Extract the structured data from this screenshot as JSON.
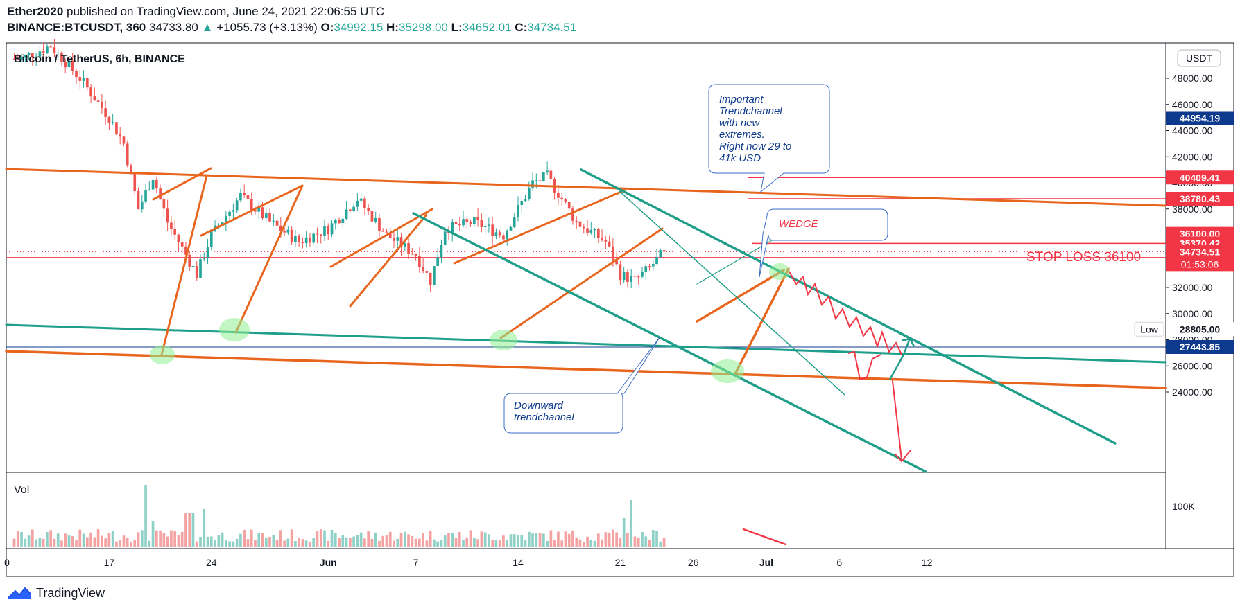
{
  "header": {
    "author": "Ether2020",
    "published_text": "published on TradingView.com, June 24, 2021 22:06:55 UTC",
    "symbol_line": "BINANCE:BTCUSDT, 360",
    "last": "34733.80",
    "up_arrow": "▲",
    "change": "+1055.73 (+3.13%)",
    "o_label": "O:",
    "o_val": "34992.15",
    "h_label": "H:",
    "h_val": "35298.00",
    "l_label": "L:",
    "l_val": "34652.01",
    "c_label": "C:",
    "c_val": "34734.51"
  },
  "pane_title": "Bitcoin / TetherUS, 6h, BINANCE",
  "currency_button": "USDT",
  "vol_label": "Vol",
  "vol_axis_label": "100K",
  "footer": {
    "brand": "TradingView",
    "logo_icon": "tradingview-logo-icon"
  },
  "colors": {
    "up": "#26a69a",
    "down": "#ef5350",
    "orange": "#e8651e",
    "teal": "#1f9e89",
    "red": "#f23645",
    "navy": "#0d3a8c",
    "highlight": "#90ee90"
  },
  "chart_data": {
    "type": "candlestick",
    "yaxis": {
      "ticks": [
        24000,
        26000,
        28000,
        30000,
        32000,
        34000,
        36000,
        38000,
        40000,
        42000,
        44000,
        46000,
        48000
      ],
      "range": [
        22300,
        51200
      ]
    },
    "xaxis": {
      "labels": [
        {
          "text": "0",
          "date": "2021-05-10"
        },
        {
          "text": "17",
          "date": "2021-05-17"
        },
        {
          "text": "24",
          "date": "2021-05-24"
        },
        {
          "text": "Jun",
          "date": "2021-06-01"
        },
        {
          "text": "7",
          "date": "2021-06-07"
        },
        {
          "text": "14",
          "date": "2021-06-14"
        },
        {
          "text": "21",
          "date": "2021-06-21"
        },
        {
          "text": "26",
          "date": "2021-06-26"
        },
        {
          "text": "Jul",
          "date": "2021-07-01"
        },
        {
          "text": "6",
          "date": "2021-07-06"
        },
        {
          "text": "12",
          "date": "2021-07-12"
        }
      ]
    },
    "price_labels": [
      {
        "value": 44954.19,
        "text": "44954.19",
        "color": "#0d3a8c"
      },
      {
        "value": 40409.41,
        "text": "40409.41",
        "color": "#f23645"
      },
      {
        "value": 38780.43,
        "text": "38780.43",
        "color": "#f23645"
      },
      {
        "value": 36100.0,
        "text": "36100.00",
        "color": "#f23645"
      },
      {
        "value": 35370.42,
        "text": "35370.42",
        "color": "#f23645"
      },
      {
        "value": 34734.51,
        "text": "34734.51",
        "color": "#f23645",
        "sub": "01:53:06"
      },
      {
        "value": 28805.0,
        "text": "28805.00",
        "color": "#ffffff",
        "tag": "Low"
      },
      {
        "value": 27443.85,
        "text": "27443.85",
        "color": "#0d3a8c"
      }
    ],
    "annotations": {
      "trendchannel_note": "Important\nTrendchannel\nwith new\nextremes.\nRight now 29 to\n41k USD",
      "wedge": "WEDGE",
      "stop_loss": "STOP LOSS 36100",
      "downward": "Downward\ntrendchannel"
    },
    "ohlc_key_points": [
      {
        "date": "2021-05-11",
        "close": 49500
      },
      {
        "date": "2021-05-13",
        "close": 50500
      },
      {
        "date": "2021-05-15",
        "close": 48000
      },
      {
        "date": "2021-05-17",
        "close": 45000
      },
      {
        "date": "2021-05-18",
        "close": 43000
      },
      {
        "date": "2021-05-19",
        "close": 38000
      },
      {
        "date": "2021-05-20",
        "close": 40500
      },
      {
        "date": "2021-05-21",
        "close": 37000
      },
      {
        "date": "2021-05-23",
        "close": 33000
      },
      {
        "date": "2021-05-24",
        "close": 36000
      },
      {
        "date": "2021-05-26",
        "close": 39000
      },
      {
        "date": "2021-05-28",
        "close": 37000
      },
      {
        "date": "2021-05-30",
        "close": 35500
      },
      {
        "date": "2021-06-01",
        "close": 36500
      },
      {
        "date": "2021-06-03",
        "close": 38800
      },
      {
        "date": "2021-06-05",
        "close": 36000
      },
      {
        "date": "2021-06-07",
        "close": 34500
      },
      {
        "date": "2021-06-08",
        "close": 32500
      },
      {
        "date": "2021-06-09",
        "close": 36500
      },
      {
        "date": "2021-06-11",
        "close": 37000
      },
      {
        "date": "2021-06-13",
        "close": 36000
      },
      {
        "date": "2021-06-15",
        "close": 40000
      },
      {
        "date": "2021-06-16",
        "close": 40500
      },
      {
        "date": "2021-06-18",
        "close": 37000
      },
      {
        "date": "2021-06-20",
        "close": 35500
      },
      {
        "date": "2021-06-21",
        "close": 33000
      },
      {
        "date": "2021-06-22",
        "close": 32500
      },
      {
        "date": "2021-06-23",
        "close": 33500
      },
      {
        "date": "2021-06-24",
        "close": 34734.51
      }
    ]
  }
}
